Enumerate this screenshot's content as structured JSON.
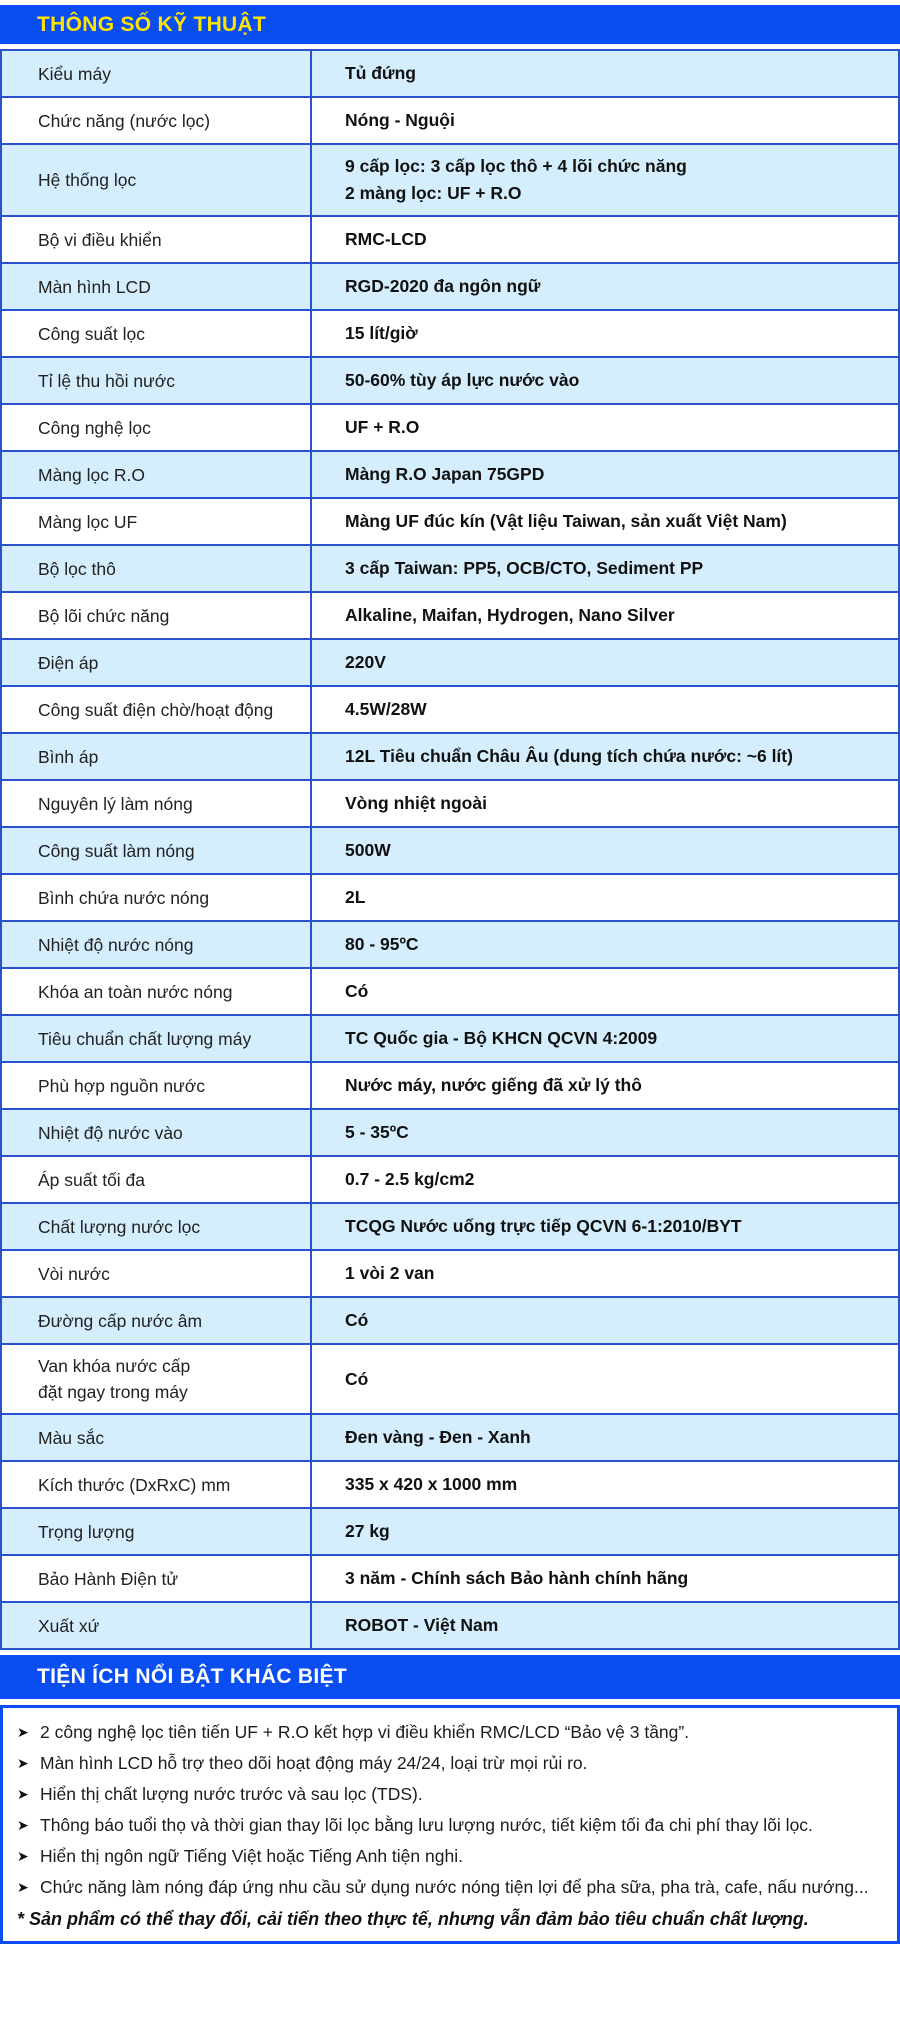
{
  "header": {
    "title": "THÔNG SỐ KỸ THUẬT"
  },
  "specs_table": {
    "rows": [
      {
        "label": "Kiểu máy",
        "value": "Tủ đứng"
      },
      {
        "label": "Chức năng (nước lọc)",
        "value": "Nóng - Nguội"
      },
      {
        "label": "Hệ thống lọc",
        "value": "9 cấp lọc: 3 cấp lọc thô + 4 lõi chức năng\n2 màng lọc: UF + R.O"
      },
      {
        "label": "Bộ vi điều khiển",
        "value": "RMC-LCD"
      },
      {
        "label": "Màn hình LCD",
        "value": "RGD-2020 đa ngôn ngữ"
      },
      {
        "label": "Công suất lọc",
        "value": "15 lít/giờ"
      },
      {
        "label": "Tỉ lệ thu hồi nước",
        "value": "50-60% tùy áp lực nước vào"
      },
      {
        "label": "Công nghệ lọc",
        "value": "UF + R.O"
      },
      {
        "label": "Màng lọc R.O",
        "value": "Màng R.O Japan 75GPD"
      },
      {
        "label": "Màng lọc UF",
        "value": "Màng UF đúc kín (Vật liệu Taiwan, sản xuất Việt Nam)"
      },
      {
        "label": "Bộ lọc thô",
        "value": "3 cấp Taiwan: PP5, OCB/CTO, Sediment PP"
      },
      {
        "label": "Bộ lõi chức năng",
        "value": "Alkaline, Maifan, Hydrogen, Nano Silver"
      },
      {
        "label": "Điện áp",
        "value": "220V"
      },
      {
        "label": "Công suất điện chờ/hoạt động",
        "value": "4.5W/28W"
      },
      {
        "label": "Bình áp",
        "value": "12L Tiêu chuẩn Châu Âu (dung tích chứa nước: ~6 lít)"
      },
      {
        "label": "Nguyên lý làm nóng",
        "value": "Vòng nhiệt ngoài"
      },
      {
        "label": "Công suất làm nóng",
        "value": "500W"
      },
      {
        "label": "Bình chứa nước nóng",
        "value": "2L"
      },
      {
        "label": "Nhiệt độ nước nóng",
        "value": "80 - 95ºC"
      },
      {
        "label": "Khóa an toàn nước nóng",
        "value": "Có"
      },
      {
        "label": "Tiêu chuẩn chất lượng máy",
        "value": "TC Quốc gia - Bộ KHCN QCVN 4:2009"
      },
      {
        "label": "Phù hợp nguồn nước",
        "value": "Nước máy, nước giếng đã xử lý thô"
      },
      {
        "label": "Nhiệt độ nước vào",
        "value": "5 - 35ºC"
      },
      {
        "label": "Áp suất tối đa",
        "value": "0.7 - 2.5 kg/cm2"
      },
      {
        "label": "Chất lượng nước lọc",
        "value": "TCQG Nước uống trực tiếp QCVN 6-1:2010/BYT"
      },
      {
        "label": "Vòi nước",
        "value": "1 vòi 2 van"
      },
      {
        "label": "Đường cấp nước âm",
        "value": "Có"
      },
      {
        "label": "Van khóa nước cấp\nđặt ngay trong máy",
        "value": "Có"
      },
      {
        "label": "Màu sắc",
        "value": "Đen vàng - Đen - Xanh"
      },
      {
        "label": "Kích thước (DxRxC) mm",
        "value": "335 x 420 x 1000 mm"
      },
      {
        "label": "Trọng lượng",
        "value": "27 kg"
      },
      {
        "label": "Bảo Hành Điện tử",
        "value": "3 năm - Chính sách Bảo hành chính hãng"
      },
      {
        "label": "Xuất xứ",
        "value": "ROBOT - Việt Nam"
      }
    ]
  },
  "features": {
    "title": "TIỆN ÍCH NỔI BẬT KHÁC BIỆT",
    "bullet_icon": "➤",
    "items": [
      "2 công nghệ lọc tiên tiến UF + R.O kết hợp vi điều khiển RMC/LCD “Bảo vệ 3 tầng”.",
      "Màn hình LCD hỗ trợ theo dõi hoạt động máy 24/24, loại trừ mọi rủi ro.",
      "Hiển thị chất lượng nước trước và sau lọc (TDS).",
      "Thông báo tuổi thọ và thời gian thay lõi lọc bằng lưu lượng nước, tiết kiệm tối đa chi phí thay lõi lọc.",
      "Hiển thị ngôn ngữ Tiếng Việt hoặc Tiếng Anh tiện nghi.",
      "Chức năng làm nóng đáp ứng nhu cầu sử dụng nước nóng tiện lợi để pha sữa, pha trà, cafe, nấu nướng..."
    ],
    "note": "* Sản phẩm có thể thay đổi, cải tiến theo thực tế, nhưng vẫn đảm bảo tiêu chuẩn chất lượng."
  },
  "colors": {
    "header_bg": "#0a4ef2",
    "header1_text": "#ffe400",
    "header2_text": "#ffffff",
    "row_alt_bg": "#d5eefd",
    "grid_border": "#2a52cc",
    "box_border": "#0b4df0"
  }
}
